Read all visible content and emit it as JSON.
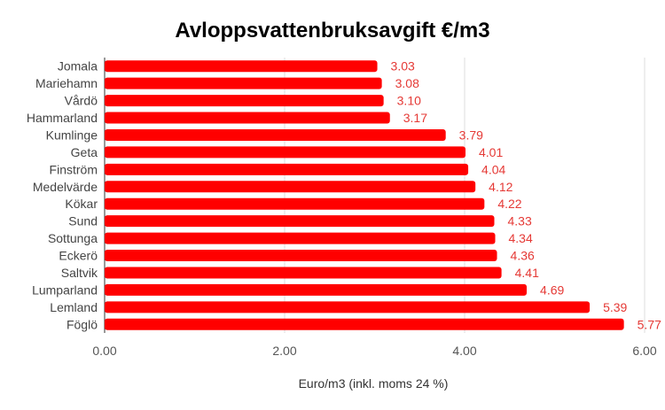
{
  "chart_data": {
    "type": "bar",
    "orientation": "horizontal",
    "title": "Avloppsvattenbruksavgift €/m3",
    "xlabel": "Euro/m3 (inkl. moms 24 %)",
    "ylabel": "",
    "categories": [
      "Jomala",
      "Mariehamn",
      "Vårdö",
      "Hammarland",
      "Kumlinge",
      "Geta",
      "Finström",
      "Medelvärde",
      "Kökar",
      "Sund",
      "Sottunga",
      "Eckerö",
      "Saltvik",
      "Lumparland",
      "Lemland",
      "Föglö"
    ],
    "values": [
      3.03,
      3.08,
      3.1,
      3.17,
      3.79,
      4.01,
      4.04,
      4.12,
      4.22,
      4.33,
      4.34,
      4.36,
      4.41,
      4.69,
      5.39,
      5.77
    ],
    "value_labels": [
      "3.03",
      "3.08",
      "3.10",
      "3.17",
      "3.79",
      "4.01",
      "4.04",
      "4.12",
      "4.22",
      "4.33",
      "4.34",
      "4.36",
      "4.41",
      "4.69",
      "5.39",
      "5.77"
    ],
    "xlim": [
      0,
      6
    ],
    "xticks": [
      0,
      2,
      4,
      6
    ],
    "xtick_labels": [
      "0.00",
      "2.00",
      "4.00",
      "6.00"
    ],
    "grid": true,
    "legend": "none",
    "colors": {
      "bar": "#ff0000",
      "value_label": "#e53935",
      "gridline": "#dddddd",
      "baseline": "#333333"
    }
  }
}
